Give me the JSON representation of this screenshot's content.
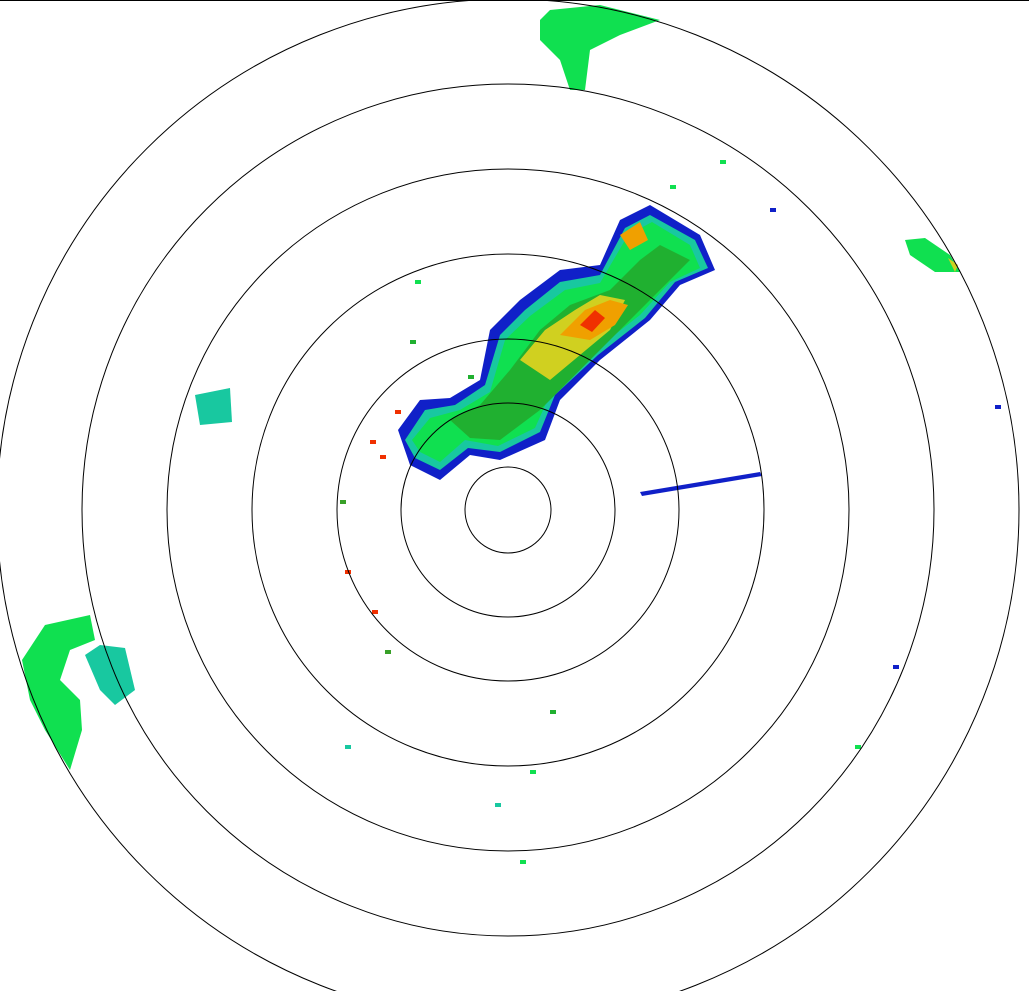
{
  "display": {
    "type": "radar-ppi",
    "range_ring_count": 7,
    "background_color": "#ffffff",
    "ring_color": "#000000"
  },
  "color_scale": [
    "#1020c8",
    "#18c8a0",
    "#10e050",
    "#20b030",
    "#38a028",
    "#d0d020",
    "#f0a000",
    "#f03000"
  ]
}
